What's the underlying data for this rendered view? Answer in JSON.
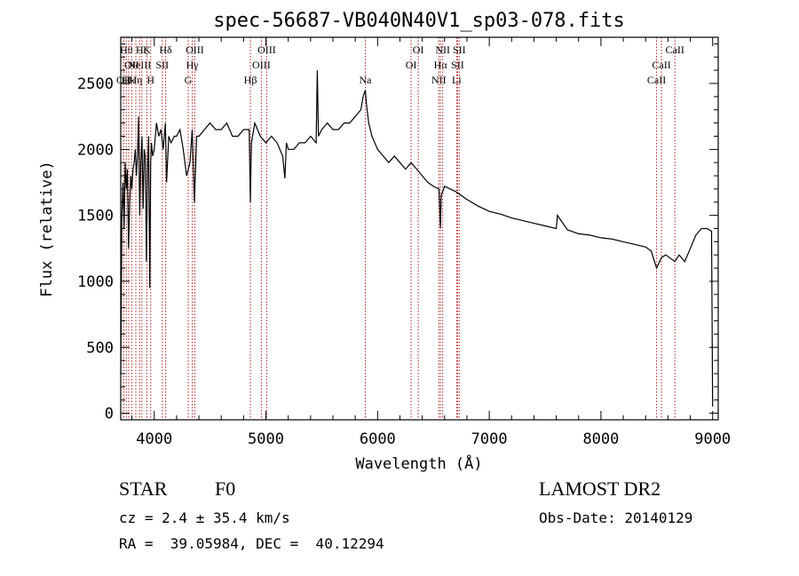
{
  "chart_data": {
    "type": "line",
    "title": "spec-56687-VB040N40V1_sp03-078.fits",
    "xlabel": "Wavelength (Å)",
    "ylabel": "Flux (relative)",
    "xlim": [
      3700,
      9050
    ],
    "ylim": [
      -50,
      2850
    ],
    "xticks": [
      4000,
      5000,
      6000,
      7000,
      8000,
      9000
    ],
    "yticks": [
      0,
      500,
      1000,
      1500,
      2000,
      2500
    ],
    "grid": false,
    "series": [
      {
        "x": [
          3700,
          3710,
          3720,
          3730,
          3740,
          3750,
          3760,
          3770,
          3780,
          3790,
          3800,
          3810,
          3820,
          3830,
          3840,
          3850,
          3860,
          3870,
          3880,
          3890,
          3900,
          3910,
          3920,
          3930,
          3935,
          3940,
          3950,
          3960,
          3968,
          3975,
          3985,
          4000,
          4020,
          4040,
          4060,
          4080,
          4100,
          4110,
          4130,
          4150,
          4180,
          4200,
          4230,
          4260,
          4290,
          4320,
          4340,
          4360,
          4380,
          4400,
          4450,
          4500,
          4550,
          4600,
          4650,
          4700,
          4750,
          4800,
          4850,
          4861,
          4870,
          4900,
          4950,
          5000,
          5050,
          5100,
          5150,
          5170,
          5183,
          5200,
          5250,
          5300,
          5350,
          5400,
          5450,
          5460,
          5470,
          5500,
          5550,
          5600,
          5650,
          5700,
          5750,
          5800,
          5850,
          5870,
          5890,
          5900,
          5920,
          5950,
          6000,
          6050,
          6100,
          6150,
          6200,
          6250,
          6300,
          6350,
          6400,
          6450,
          6500,
          6550,
          6563,
          6570,
          6600,
          6650,
          6700,
          6750,
          6800,
          6900,
          7000,
          7100,
          7200,
          7300,
          7400,
          7500,
          7600,
          7610,
          7700,
          7800,
          7900,
          8000,
          8100,
          8200,
          8300,
          8400,
          8450,
          8498,
          8542,
          8580,
          8662,
          8700,
          8750,
          8800,
          8850,
          8900,
          8950,
          8990,
          9000
        ],
        "values": [
          300,
          1500,
          1750,
          1400,
          1900,
          1700,
          1850,
          1250,
          1600,
          1800,
          1700,
          1850,
          1900,
          2000,
          1800,
          1950,
          2250,
          1500,
          1900,
          2100,
          1550,
          2000,
          1950,
          1150,
          1500,
          1850,
          2100,
          950,
          1900,
          2050,
          1950,
          2000,
          2200,
          2100,
          2150,
          2000,
          2200,
          1750,
          2100,
          2050,
          2100,
          2100,
          2150,
          2000,
          1800,
          1900,
          2150,
          1600,
          2100,
          2100,
          2150,
          2200,
          2150,
          2150,
          2200,
          2100,
          2100,
          2150,
          2150,
          1600,
          2050,
          2200,
          2100,
          2050,
          2100,
          2050,
          1950,
          1780,
          2050,
          2000,
          2000,
          2050,
          2050,
          2100,
          2050,
          2600,
          2100,
          2150,
          2200,
          2150,
          2150,
          2200,
          2200,
          2250,
          2300,
          2400,
          2450,
          2350,
          2200,
          2100,
          2000,
          1950,
          1900,
          1950,
          1900,
          1850,
          1900,
          1850,
          1800,
          1750,
          1720,
          1700,
          1400,
          1650,
          1720,
          1700,
          1680,
          1650,
          1620,
          1570,
          1530,
          1510,
          1480,
          1460,
          1440,
          1420,
          1400,
          1500,
          1390,
          1360,
          1350,
          1330,
          1320,
          1300,
          1280,
          1260,
          1230,
          1100,
          1180,
          1200,
          1150,
          1200,
          1150,
          1250,
          1350,
          1400,
          1400,
          1380,
          50
        ]
      }
    ],
    "lines": [
      {
        "x": 3727,
        "label": "OII",
        "row": 2
      },
      {
        "x": 3750,
        "label": "Hθ",
        "row": 0
      },
      {
        "x": 3771,
        "label": "Hκ",
        "row": 2
      },
      {
        "x": 3798,
        "label": "OII",
        "row": 1
      },
      {
        "x": 3835,
        "label": "Hη",
        "row": 2
      },
      {
        "x": 3869,
        "label": "NeIII",
        "row": 1
      },
      {
        "x": 3889,
        "label": "Hζ",
        "row": 0
      },
      {
        "x": 3934,
        "label": "K",
        "row": 0
      },
      {
        "x": 3968,
        "label": "H",
        "row": 2
      },
      {
        "x": 4072,
        "label": "SII",
        "row": 1
      },
      {
        "x": 4102,
        "label": "Hδ",
        "row": 0
      },
      {
        "x": 4304,
        "label": "G",
        "row": 2
      },
      {
        "x": 4341,
        "label": "Hγ",
        "row": 1
      },
      {
        "x": 4363,
        "label": "OIII",
        "row": 0
      },
      {
        "x": 4861,
        "label": "Hβ",
        "row": 2
      },
      {
        "x": 4959,
        "label": "OIII",
        "row": 1
      },
      {
        "x": 5007,
        "label": "OIII",
        "row": 0
      },
      {
        "x": 5890,
        "label": "Na",
        "row": 2
      },
      {
        "x": 6300,
        "label": "OI",
        "row": 1
      },
      {
        "x": 6364,
        "label": "OI",
        "row": 0
      },
      {
        "x": 6548,
        "label": "NII",
        "row": 2
      },
      {
        "x": 6563,
        "label": "Hα",
        "row": 1
      },
      {
        "x": 6583,
        "label": "NII",
        "row": 0
      },
      {
        "x": 6708,
        "label": "Li",
        "row": 2
      },
      {
        "x": 6716,
        "label": "SII",
        "row": 1
      },
      {
        "x": 6731,
        "label": "SII",
        "row": 0
      },
      {
        "x": 8498,
        "label": "CaII",
        "row": 2
      },
      {
        "x": 8542,
        "label": "CaII",
        "row": 1
      },
      {
        "x": 8662,
        "label": "CaII",
        "row": 0
      }
    ]
  },
  "footer": {
    "object": "STAR",
    "subclass": "F0",
    "survey": "LAMOST DR2",
    "cz": "cz = 2.4 ± 35.4 km/s",
    "obs_date": "Obs-Date: 20140129",
    "coords": "RA =  39.05984, DEC =  40.12294"
  },
  "colors": {
    "axis": "#000000",
    "line_markers": "#b22222",
    "spectrum": "#000000"
  }
}
